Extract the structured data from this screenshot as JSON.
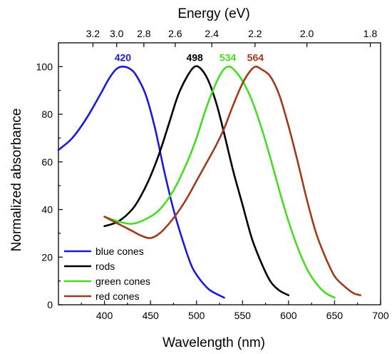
{
  "chart_data": {
    "type": "line",
    "xlabel": "Wavelength (nm)",
    "ylabel": "Normalized absorbance",
    "top_xlabel": "Energy (eV)",
    "xlim": [
      350,
      700
    ],
    "ylim": [
      0,
      110
    ],
    "x_ticks": [
      400,
      450,
      500,
      550,
      600,
      650,
      700
    ],
    "y_ticks": [
      0,
      20,
      40,
      60,
      80,
      100
    ],
    "top_ticks": [
      "3.2",
      "3.0",
      "2.8",
      "2.6",
      "2.4",
      "2.2",
      "2.0",
      "1.8"
    ],
    "legend_placement": "bottom-left",
    "series": [
      {
        "name": "blue cones",
        "color": "#1a1adb",
        "peak_label": "420",
        "peak": [
          420,
          100
        ],
        "points": [
          [
            350,
            65
          ],
          [
            365,
            70
          ],
          [
            380,
            78
          ],
          [
            395,
            88
          ],
          [
            405,
            95
          ],
          [
            413,
            99
          ],
          [
            420,
            100
          ],
          [
            428,
            99
          ],
          [
            435,
            96
          ],
          [
            445,
            88
          ],
          [
            455,
            74
          ],
          [
            465,
            56
          ],
          [
            475,
            40
          ],
          [
            485,
            27
          ],
          [
            495,
            16
          ],
          [
            505,
            10
          ],
          [
            515,
            6
          ],
          [
            530,
            3
          ]
        ]
      },
      {
        "name": "rods",
        "color": "#000000",
        "peak_label": "498",
        "peak": [
          498,
          100
        ],
        "points": [
          [
            400,
            33
          ],
          [
            415,
            35
          ],
          [
            430,
            40
          ],
          [
            440,
            46
          ],
          [
            450,
            54
          ],
          [
            460,
            64
          ],
          [
            470,
            76
          ],
          [
            480,
            88
          ],
          [
            490,
            96
          ],
          [
            498,
            100
          ],
          [
            505,
            99
          ],
          [
            513,
            94
          ],
          [
            522,
            84
          ],
          [
            530,
            72
          ],
          [
            540,
            56
          ],
          [
            550,
            42
          ],
          [
            560,
            28
          ],
          [
            570,
            18
          ],
          [
            580,
            10
          ],
          [
            590,
            6
          ],
          [
            600,
            4
          ]
        ]
      },
      {
        "name": "green cones",
        "color": "#44dd22",
        "peak_label": "534",
        "peak": [
          534,
          100
        ],
        "points": [
          [
            400,
            37
          ],
          [
            415,
            35
          ],
          [
            430,
            34
          ],
          [
            445,
            36
          ],
          [
            460,
            40
          ],
          [
            475,
            48
          ],
          [
            490,
            60
          ],
          [
            500,
            70
          ],
          [
            510,
            82
          ],
          [
            520,
            92
          ],
          [
            528,
            98
          ],
          [
            534,
            100
          ],
          [
            540,
            99
          ],
          [
            550,
            94
          ],
          [
            560,
            86
          ],
          [
            570,
            75
          ],
          [
            580,
            62
          ],
          [
            590,
            48
          ],
          [
            600,
            35
          ],
          [
            610,
            24
          ],
          [
            620,
            15
          ],
          [
            630,
            9
          ],
          [
            640,
            5
          ],
          [
            650,
            3
          ]
        ]
      },
      {
        "name": "red cones",
        "color": "#a03a1a",
        "peak_label": "564",
        "peak": [
          564,
          100
        ],
        "points": [
          [
            400,
            37
          ],
          [
            415,
            34
          ],
          [
            430,
            31
          ],
          [
            440,
            29
          ],
          [
            450,
            28
          ],
          [
            460,
            30
          ],
          [
            470,
            34
          ],
          [
            480,
            39
          ],
          [
            490,
            45
          ],
          [
            500,
            52
          ],
          [
            510,
            59
          ],
          [
            520,
            66
          ],
          [
            530,
            74
          ],
          [
            540,
            84
          ],
          [
            550,
            93
          ],
          [
            558,
            98
          ],
          [
            564,
            100
          ],
          [
            570,
            99
          ],
          [
            580,
            96
          ],
          [
            590,
            88
          ],
          [
            600,
            75
          ],
          [
            610,
            60
          ],
          [
            620,
            44
          ],
          [
            630,
            30
          ],
          [
            640,
            20
          ],
          [
            650,
            12
          ],
          [
            660,
            8
          ],
          [
            670,
            5
          ],
          [
            678,
            4
          ]
        ]
      }
    ]
  }
}
